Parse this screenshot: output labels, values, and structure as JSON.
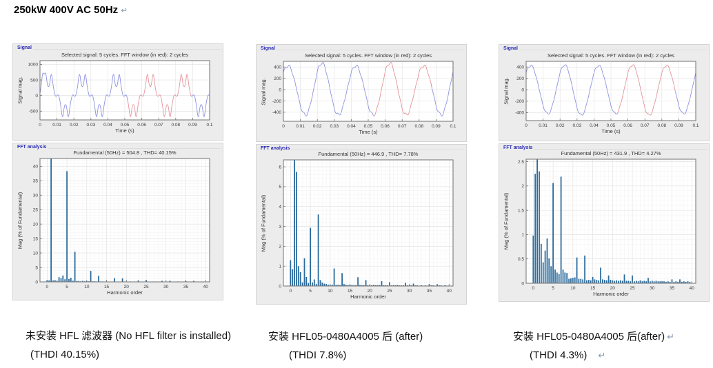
{
  "page_title": {
    "text": "250kW 400V AC 50Hz",
    "paragraph_mark": "↵"
  },
  "colors": {
    "bar": "#2b6b9d",
    "line_blue": "#8d92e0",
    "line_red": "#e4939b",
    "panel_bg": "#ececec",
    "panel_label_blue": "#2a2ab5",
    "grid_major": "#e0e0e0",
    "grid_minor": "#f2f2f2",
    "axis": "#707070"
  },
  "columns": [
    {
      "caption_line1": "未安装 HFL 滤波器 (No HFL filter is installed)",
      "mark1": "",
      "caption_line2": "(THDI 40.15%)",
      "mark2": ""
    },
    {
      "caption_line1": "安装 HFL05-0480A4005 后 (after)",
      "mark1": "",
      "caption_line2": "(THDI 7.8%)",
      "mark2": ""
    },
    {
      "caption_line1": "安装 HFL05-0480A4005 后(after)",
      "mark1": "↵",
      "caption_line2": "(THDI 4.3%)",
      "mark2": "↵"
    }
  ],
  "chart_data": [
    {
      "type": "line",
      "panel_label": "Signal",
      "title": "Selected signal: 5 cycles. FFT window (in red): 2 cycles",
      "xlabel": "Time (s)",
      "ylabel": "Signal mag.",
      "xlim": [
        0,
        0.1
      ],
      "ylim": [
        -780,
        1120
      ],
      "xticks": [
        0,
        0.01,
        0.02,
        0.03,
        0.04,
        0.05,
        0.06,
        0.07,
        0.08,
        0.09,
        0.1
      ],
      "xtick_labels": [
        "0",
        "0.01",
        "0.02",
        "0.03",
        "0.04",
        "0.05",
        "0.06",
        "0.07",
        "0.08",
        "0.09",
        "0.1"
      ],
      "yticks": [
        -500,
        0,
        500,
        1000
      ],
      "ytick_labels": [
        "-500",
        "0",
        "500",
        "1000"
      ],
      "fundamental_hz": 50,
      "amplitude": 504.8,
      "harmonics": [
        {
          "n": 1,
          "pct": 100,
          "ph": 0
        },
        {
          "n": 5,
          "pct": 38.3,
          "ph": 180
        },
        {
          "n": 7,
          "pct": 10.4,
          "ph": 0
        },
        {
          "n": 11,
          "pct": 3.8,
          "ph": 180
        },
        {
          "n": 13,
          "pct": 2.1,
          "ph": 0
        }
      ],
      "transient": {
        "a": 580,
        "t0": 0.0015,
        "s": 0.0011
      },
      "red_window": [
        0.052,
        0.089
      ]
    },
    {
      "type": "bar",
      "panel_label": "FFT analysis",
      "title": "Fundamental (50Hz) = 504.8 , THD= 40.15%",
      "xlabel": "Harmonic order",
      "ylabel": "Mag (% of Fundamental)",
      "xlim": [
        -1.8,
        41
      ],
      "ylim": [
        0,
        42.7
      ],
      "xticks": [
        0,
        5,
        10,
        15,
        20,
        25,
        30,
        35,
        40
      ],
      "xtick_labels": [
        "0",
        "5",
        "10",
        "15",
        "20",
        "25",
        "30",
        "35",
        "40"
      ],
      "yticks": [
        0,
        5,
        10,
        15,
        20,
        25,
        30,
        35,
        40
      ],
      "ytick_labels": [
        "0",
        "5",
        "10",
        "15",
        "20",
        "25",
        "30",
        "35",
        "40"
      ],
      "bars": [
        [
          0,
          0.6
        ],
        [
          0.5,
          0.5
        ],
        [
          1,
          42.7
        ],
        [
          1.5,
          0.5
        ],
        [
          2,
          0.6
        ],
        [
          2.5,
          0.4
        ],
        [
          3,
          1.6
        ],
        [
          3.5,
          1.3
        ],
        [
          4,
          2.2
        ],
        [
          4.5,
          0.9
        ],
        [
          5,
          38.3
        ],
        [
          5.5,
          1.0
        ],
        [
          6,
          1.4
        ],
        [
          6.5,
          0.4
        ],
        [
          7,
          10.4
        ],
        [
          7.5,
          0.3
        ],
        [
          8,
          0.3
        ],
        [
          8.5,
          0.2
        ],
        [
          9,
          0.35
        ],
        [
          9.5,
          0.2
        ],
        [
          10,
          0.25
        ],
        [
          10.5,
          0.2
        ],
        [
          11,
          3.8
        ],
        [
          11.5,
          0.2
        ],
        [
          12,
          0.2
        ],
        [
          12.5,
          0.15
        ],
        [
          13,
          2.1
        ],
        [
          13.5,
          0.15
        ],
        [
          14,
          0.15
        ],
        [
          14.5,
          0.1
        ],
        [
          15,
          0.15
        ],
        [
          15.5,
          0.1
        ],
        [
          16,
          0.1
        ],
        [
          16.5,
          0.1
        ],
        [
          17,
          1.3
        ],
        [
          17.5,
          0.1
        ],
        [
          18,
          0.1
        ],
        [
          18.5,
          0.1
        ],
        [
          19,
          1.2
        ],
        [
          19.5,
          0.1
        ],
        [
          20,
          0.1
        ],
        [
          21,
          0.15
        ],
        [
          22,
          0.1
        ],
        [
          23,
          0.5
        ],
        [
          24,
          0.1
        ],
        [
          25,
          0.65
        ],
        [
          26,
          0.1
        ],
        [
          27,
          0.15
        ],
        [
          28,
          0.1
        ],
        [
          29,
          0.35
        ],
        [
          30,
          0.1
        ],
        [
          31,
          0.4
        ],
        [
          32,
          0.1
        ],
        [
          33,
          0.15
        ],
        [
          34,
          0.1
        ],
        [
          35,
          0.3
        ],
        [
          36,
          0.1
        ],
        [
          37,
          0.35
        ],
        [
          38,
          0.1
        ],
        [
          39,
          0.15
        ]
      ]
    },
    {
      "type": "line",
      "panel_label": "Signal",
      "title": "Selected signal: 5 cycles. FFT window (in red): 2 cycles",
      "xlabel": "Time (s)",
      "ylabel": "Signal mag.",
      "xlim": [
        0,
        0.1
      ],
      "ylim": [
        -560,
        500
      ],
      "xticks": [
        0,
        0.01,
        0.02,
        0.03,
        0.04,
        0.05,
        0.06,
        0.07,
        0.08,
        0.09,
        0.1
      ],
      "xtick_labels": [
        "0",
        "0.01",
        "0.02",
        "0.03",
        "0.04",
        "0.05",
        "0.06",
        "0.07",
        "0.08",
        "0.09",
        "0.1"
      ],
      "yticks": [
        -400,
        -200,
        0,
        200,
        400
      ],
      "ytick_labels": [
        "-400",
        "-200",
        "0",
        "200",
        "400"
      ],
      "fundamental_hz": 50,
      "amplitude": 446.9,
      "harmonics": [
        {
          "n": 1,
          "pct": 100,
          "ph": 42
        },
        {
          "n": 1.5,
          "pct": 5.75,
          "ph": 200
        },
        {
          "n": 5,
          "pct": 2.93,
          "ph": 90
        },
        {
          "n": 7,
          "pct": 3.6,
          "ph": 0
        }
      ],
      "transient": null,
      "red_window": [
        0.053,
        0.087
      ]
    },
    {
      "type": "bar",
      "panel_label": "FFT analysis",
      "title": "Fundamental (50Hz) = 446.9 , THD= 7.78%",
      "xlabel": "Harmonic order",
      "ylabel": "Mag (% of Fundamental)",
      "xlim": [
        -1.8,
        41
      ],
      "ylim": [
        0,
        6.35
      ],
      "xticks": [
        0,
        5,
        10,
        15,
        20,
        25,
        30,
        35,
        40
      ],
      "xtick_labels": [
        "0",
        "5",
        "10",
        "15",
        "20",
        "25",
        "30",
        "35",
        "40"
      ],
      "yticks": [
        0,
        1,
        2,
        3,
        4,
        5,
        6
      ],
      "ytick_labels": [
        "0",
        "1",
        "2",
        "3",
        "4",
        "5",
        "6"
      ],
      "bars": [
        [
          0,
          1.3
        ],
        [
          0.5,
          0.85
        ],
        [
          1,
          6.35
        ],
        [
          1.5,
          5.75
        ],
        [
          2,
          1.0
        ],
        [
          2.5,
          0.7
        ],
        [
          3,
          0.18
        ],
        [
          3.5,
          1.4
        ],
        [
          4,
          0.45
        ],
        [
          4.5,
          0.15
        ],
        [
          5,
          2.93
        ],
        [
          5.5,
          0.18
        ],
        [
          6,
          0.33
        ],
        [
          6.5,
          0.1
        ],
        [
          7,
          3.6
        ],
        [
          7.5,
          0.3
        ],
        [
          8,
          0.17
        ],
        [
          8.5,
          0.12
        ],
        [
          9,
          0.1
        ],
        [
          9.5,
          0.07
        ],
        [
          10,
          0.06
        ],
        [
          10.5,
          0.07
        ],
        [
          11,
          0.88
        ],
        [
          11.5,
          0.06
        ],
        [
          12,
          0.06
        ],
        [
          12.5,
          0.05
        ],
        [
          13,
          0.65
        ],
        [
          13.5,
          0.1
        ],
        [
          14,
          0.06
        ],
        [
          14.5,
          0.05
        ],
        [
          15,
          0.06
        ],
        [
          15.5,
          0.05
        ],
        [
          16,
          0.05
        ],
        [
          16.5,
          0.04
        ],
        [
          17,
          0.44
        ],
        [
          17.5,
          0.05
        ],
        [
          18,
          0.04
        ],
        [
          18.5,
          0.04
        ],
        [
          19,
          0.3
        ],
        [
          19.5,
          0.04
        ],
        [
          20,
          0.05
        ],
        [
          20.5,
          0.04
        ],
        [
          21,
          0.06
        ],
        [
          21.5,
          0.04
        ],
        [
          22,
          0.04
        ],
        [
          22.5,
          0.04
        ],
        [
          23,
          0.24
        ],
        [
          23.5,
          0.04
        ],
        [
          24,
          0.04
        ],
        [
          24.5,
          0.03
        ],
        [
          25,
          0.19
        ],
        [
          25.5,
          0.03
        ],
        [
          26,
          0.04
        ],
        [
          26.5,
          0.03
        ],
        [
          27,
          0.05
        ],
        [
          27.5,
          0.03
        ],
        [
          28,
          0.03
        ],
        [
          28.5,
          0.03
        ],
        [
          29,
          0.16
        ],
        [
          29.5,
          0.03
        ],
        [
          30,
          0.04
        ],
        [
          30.5,
          0.03
        ],
        [
          31,
          0.12
        ],
        [
          31.5,
          0.03
        ],
        [
          32,
          0.03
        ],
        [
          33,
          0.04
        ],
        [
          34,
          0.03
        ],
        [
          35,
          0.09
        ],
        [
          35.5,
          0.03
        ],
        [
          36,
          0.03
        ],
        [
          37,
          0.09
        ],
        [
          37.5,
          0.03
        ],
        [
          38,
          0.03
        ],
        [
          39,
          0.04
        ]
      ]
    },
    {
      "type": "line",
      "panel_label": "Signal",
      "title": "Selected signal: 5 cycles. FFT window (in red): 2 cycles",
      "xlabel": "Time (s)",
      "ylabel": "Signal mag.",
      "xlim": [
        0,
        0.1
      ],
      "ylim": [
        -540,
        500
      ],
      "xticks": [
        0,
        0.01,
        0.02,
        0.03,
        0.04,
        0.05,
        0.06,
        0.07,
        0.08,
        0.09,
        0.1
      ],
      "xtick_labels": [
        "0",
        "0.01",
        "0.02",
        "0.03",
        "0.04",
        "0.05",
        "0.06",
        "0.07",
        "0.08",
        "0.09",
        "0.1"
      ],
      "yticks": [
        -400,
        -200,
        0,
        200,
        400
      ],
      "ytick_labels": [
        "-400",
        "-200",
        "0",
        "200",
        "400"
      ],
      "fundamental_hz": 50,
      "amplitude": 431.9,
      "harmonics": [
        {
          "n": 1,
          "pct": 100,
          "ph": 42
        },
        {
          "n": 0.5,
          "pct": 2.25,
          "ph": 0
        },
        {
          "n": 1.5,
          "pct": 2.3,
          "ph": 180
        },
        {
          "n": 5,
          "pct": 2.06,
          "ph": 90
        },
        {
          "n": 7,
          "pct": 2.19,
          "ph": 0
        }
      ],
      "transient": null,
      "red_window": [
        0.054,
        0.088
      ]
    },
    {
      "type": "bar",
      "panel_label": "FFT analysis",
      "title": "Fundamental (50Hz) = 431.9 , THD= 4.27%",
      "xlabel": "Harmonic order",
      "ylabel": "Mag (% of Fundamental)",
      "xlim": [
        -1.8,
        41
      ],
      "ylim": [
        0,
        2.55
      ],
      "xticks": [
        0,
        5,
        10,
        15,
        20,
        25,
        30,
        35,
        40
      ],
      "xtick_labels": [
        "0",
        "5",
        "10",
        "15",
        "20",
        "25",
        "30",
        "35",
        "40"
      ],
      "yticks": [
        0,
        0.5,
        1,
        1.5,
        2,
        2.5
      ],
      "ytick_labels": [
        "0",
        "0.5",
        "1",
        "1.5",
        "2",
        "2.5"
      ],
      "bars": [
        [
          0,
          0.98
        ],
        [
          0.5,
          2.25
        ],
        [
          1,
          2.55
        ],
        [
          1.5,
          2.3
        ],
        [
          2,
          0.81
        ],
        [
          2.5,
          0.43
        ],
        [
          3,
          0.67
        ],
        [
          3.5,
          0.92
        ],
        [
          4,
          0.51
        ],
        [
          4.5,
          0.35
        ],
        [
          5,
          2.06
        ],
        [
          5.5,
          0.28
        ],
        [
          6,
          0.22
        ],
        [
          6.5,
          0.19
        ],
        [
          7,
          2.19
        ],
        [
          7.5,
          0.28
        ],
        [
          8,
          0.22
        ],
        [
          8.5,
          0.21
        ],
        [
          9,
          0.09
        ],
        [
          9.5,
          0.1
        ],
        [
          10,
          0.11
        ],
        [
          10.5,
          0.12
        ],
        [
          11,
          0.53
        ],
        [
          11.5,
          0.09
        ],
        [
          12,
          0.09
        ],
        [
          12.5,
          0.08
        ],
        [
          13,
          0.57
        ],
        [
          13.5,
          0.06
        ],
        [
          14,
          0.07
        ],
        [
          14.5,
          0.06
        ],
        [
          15,
          0.13
        ],
        [
          15.5,
          0.08
        ],
        [
          16,
          0.07
        ],
        [
          16.5,
          0.06
        ],
        [
          17,
          0.32
        ],
        [
          17.5,
          0.08
        ],
        [
          18,
          0.07
        ],
        [
          18.5,
          0.06
        ],
        [
          19,
          0.16
        ],
        [
          19.5,
          0.07
        ],
        [
          20,
          0.06
        ],
        [
          20.5,
          0.05
        ],
        [
          21,
          0.06
        ],
        [
          21.5,
          0.05
        ],
        [
          22,
          0.06
        ],
        [
          22.5,
          0.05
        ],
        [
          23,
          0.18
        ],
        [
          23.5,
          0.05
        ],
        [
          24,
          0.05
        ],
        [
          24.5,
          0.04
        ],
        [
          25,
          0.16
        ],
        [
          25.5,
          0.04
        ],
        [
          26,
          0.05
        ],
        [
          26.5,
          0.04
        ],
        [
          27,
          0.06
        ],
        [
          27.5,
          0.04
        ],
        [
          28,
          0.05
        ],
        [
          28.5,
          0.04
        ],
        [
          29,
          0.11
        ],
        [
          29.5,
          0.04
        ],
        [
          30,
          0.05
        ],
        [
          30.5,
          0.04
        ],
        [
          31,
          0.05
        ],
        [
          31.5,
          0.04
        ],
        [
          32,
          0.04
        ],
        [
          32.5,
          0.04
        ],
        [
          33,
          0.04
        ],
        [
          33.5,
          0.03
        ],
        [
          34,
          0.04
        ],
        [
          34.5,
          0.03
        ],
        [
          35,
          0.08
        ],
        [
          35.5,
          0.03
        ],
        [
          36,
          0.04
        ],
        [
          36.5,
          0.03
        ],
        [
          37,
          0.08
        ],
        [
          37.5,
          0.03
        ],
        [
          38,
          0.04
        ],
        [
          38.5,
          0.03
        ],
        [
          39,
          0.04
        ],
        [
          39.5,
          0.03
        ]
      ]
    }
  ]
}
